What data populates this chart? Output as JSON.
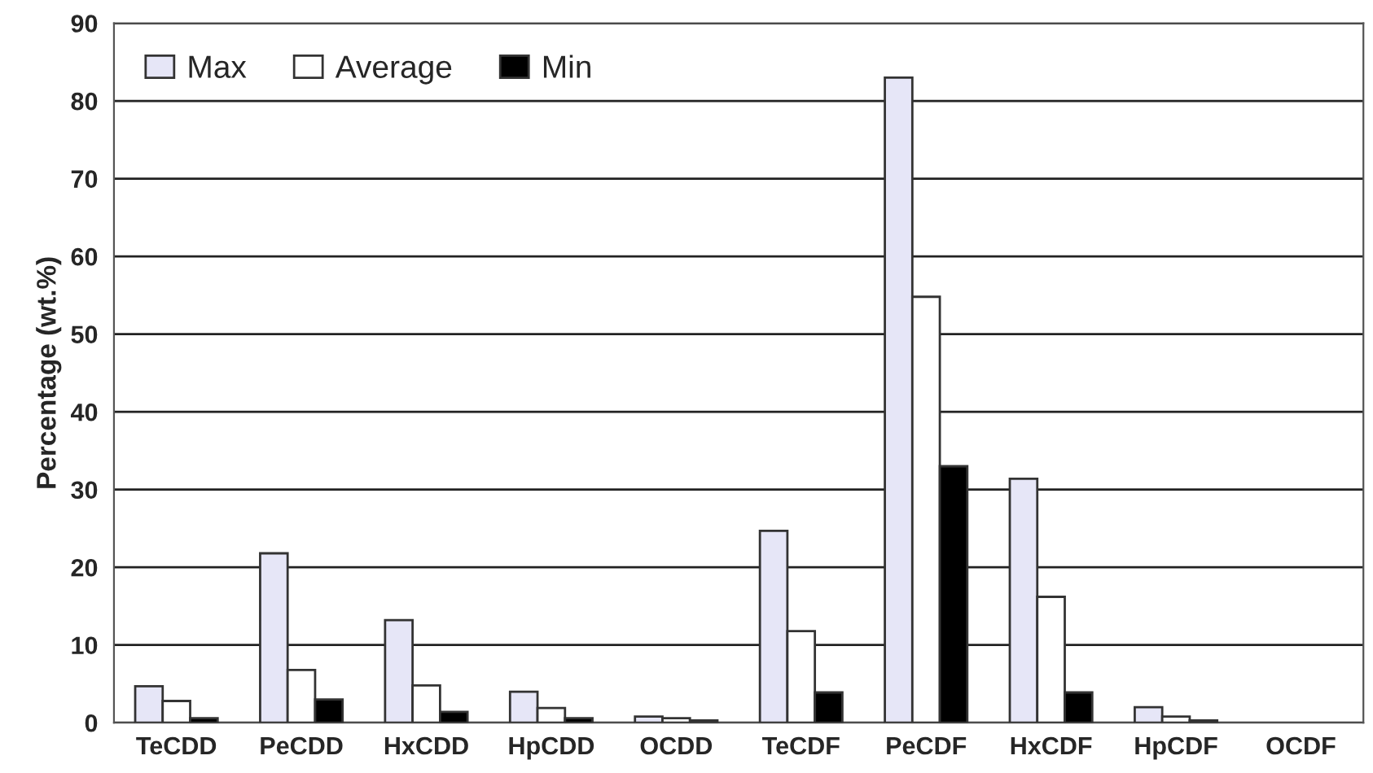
{
  "chart_data": {
    "type": "bar",
    "ylabel": "Percentage (wt.%)",
    "categories": [
      "TeCDD",
      "PeCDD",
      "HxCDD",
      "HpCDD",
      "OCDD",
      "TeCDF",
      "PeCDF",
      "HxCDF",
      "HpCDF",
      "OCDF"
    ],
    "series": [
      {
        "name": "Max",
        "color": "#e6e6f7",
        "values": [
          4.7,
          21.8,
          13.2,
          4.0,
          0.8,
          24.7,
          83,
          31.4,
          2.0,
          null
        ]
      },
      {
        "name": "Average",
        "color": "#ffffff",
        "values": [
          2.8,
          6.8,
          4.8,
          1.9,
          0.6,
          11.8,
          54.8,
          16.2,
          0.8,
          null
        ]
      },
      {
        "name": "Min",
        "color": "#000000",
        "values": [
          0.6,
          3.0,
          1.4,
          0.6,
          0.3,
          3.9,
          33,
          3.9,
          0.3,
          null
        ]
      }
    ],
    "ylim": [
      0,
      90
    ],
    "yticks": [
      0,
      10,
      20,
      30,
      40,
      50,
      60,
      70,
      80,
      90
    ],
    "grid": "y",
    "legend": "top left"
  }
}
